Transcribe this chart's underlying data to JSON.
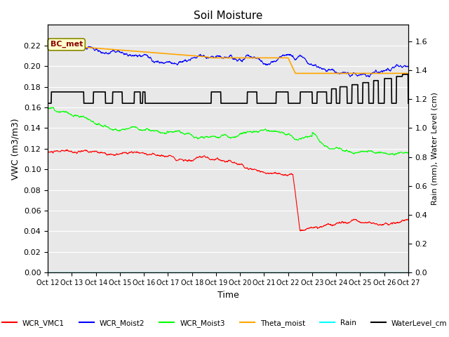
{
  "title": "Soil Moisture",
  "xlabel": "Time",
  "ylabel_left": "VWC (m3/m3)",
  "ylabel_right": "Rain (mm), Water Level (cm)",
  "ylim_left": [
    0.0,
    0.24
  ],
  "ylim_right": [
    0.0,
    1.7142857
  ],
  "yticks_left": [
    0.0,
    0.02,
    0.04,
    0.06,
    0.08,
    0.1,
    0.12,
    0.14,
    0.16,
    0.18,
    0.2,
    0.22
  ],
  "yticks_right": [
    0.0,
    0.2,
    0.4,
    0.6,
    0.8,
    1.0,
    1.2,
    1.4,
    1.6
  ],
  "bg_color": "#ffffff",
  "plot_bg_color": "#e8e8e8",
  "annotation_text": "BC_met",
  "annotation_color": "#8B0000",
  "annotation_bg": "#ffffcc",
  "series_colors": {
    "WCR_VMC1": "red",
    "WCR_Moist2": "blue",
    "WCR_Moist3": "lime",
    "Theta_moist": "orange",
    "Rain": "cyan",
    "WaterLevel_cm": "black"
  }
}
